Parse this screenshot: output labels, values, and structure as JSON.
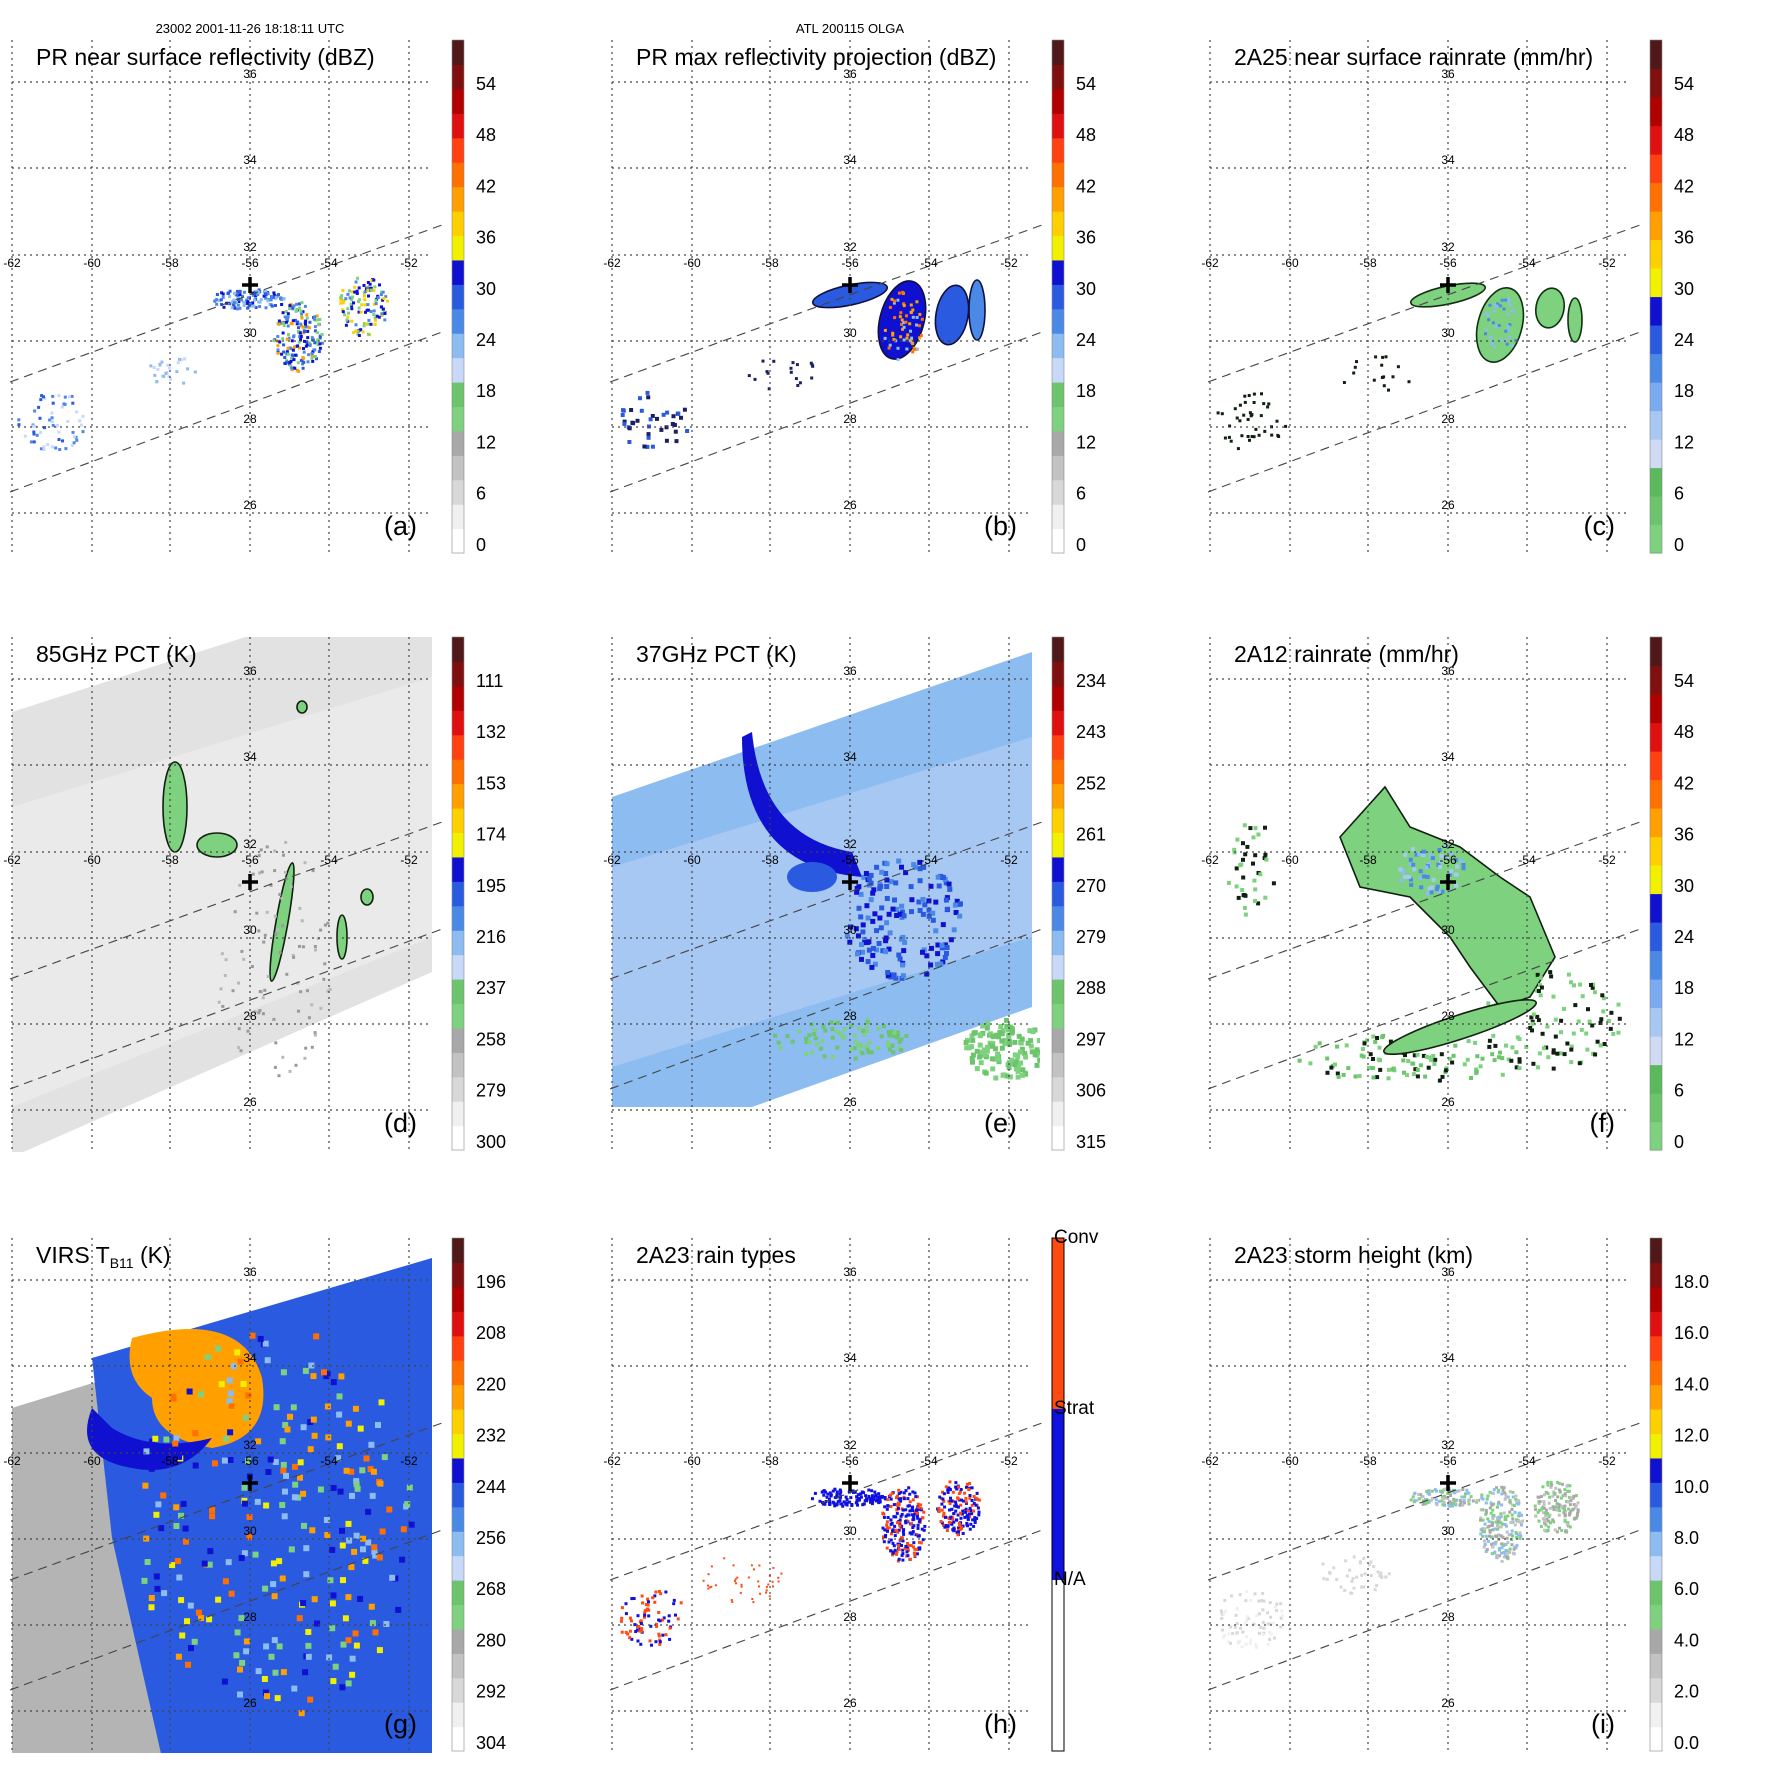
{
  "header": {
    "orbit_time": "23002 2001-11-26 18:18:11 UTC",
    "storm": "ATL 200115 OLGA"
  },
  "axes": {
    "lon_labels": [
      "-62",
      "-60",
      "-58",
      "-56",
      "-54",
      "-52"
    ],
    "lat_labels": [
      "36",
      "34",
      "32",
      "30",
      "28",
      "26"
    ]
  },
  "panels": [
    {
      "id": "a",
      "label": "(a)",
      "title": "PR near surface reflectivity (dBZ)",
      "title_sub": "",
      "title_end": "",
      "swath": "narrow",
      "field": "pr_dbz",
      "colorbar": {
        "ticks": [
          "54",
          "48",
          "42",
          "36",
          "30",
          "24",
          "18",
          "12",
          "6",
          "0"
        ],
        "colors": [
          "#ffffff",
          "#f0f0f0",
          "#d8d8d8",
          "#c2c2c2",
          "#a8a8a8",
          "#7ed17e",
          "#6cc46c",
          "#c8d8f8",
          "#8cbcf0",
          "#4a8ae6",
          "#2a5ae0",
          "#1010d0",
          "#f0f000",
          "#ffd000",
          "#ffa000",
          "#ff7000",
          "#ff4010",
          "#e01010",
          "#b00000",
          "#801010",
          "#501818"
        ]
      }
    },
    {
      "id": "b",
      "label": "(b)",
      "title": "PR max reflectivity projection (dBZ)",
      "title_sub": "",
      "title_end": "",
      "swath": "narrow",
      "field": "pr_max",
      "colorbar": {
        "ticks": [
          "54",
          "48",
          "42",
          "36",
          "30",
          "24",
          "18",
          "12",
          "6",
          "0"
        ],
        "colors": [
          "#ffffff",
          "#f0f0f0",
          "#d8d8d8",
          "#c2c2c2",
          "#a8a8a8",
          "#7ed17e",
          "#6cc46c",
          "#c8d8f8",
          "#8cbcf0",
          "#4a8ae6",
          "#2a5ae0",
          "#1010d0",
          "#f0f000",
          "#ffd000",
          "#ffa000",
          "#ff7000",
          "#ff4010",
          "#e01010",
          "#b00000",
          "#801010",
          "#501818"
        ]
      }
    },
    {
      "id": "c",
      "label": "(c)",
      "title": "2A25 near surface rainrate (mm/hr)",
      "title_sub": "",
      "title_end": "",
      "swath": "narrow",
      "field": "rain25",
      "colorbar": {
        "ticks": [
          "54",
          "48",
          "42",
          "36",
          "30",
          "24",
          "18",
          "12",
          "6",
          "0"
        ],
        "colors": [
          "#7ed17e",
          "#6cc46c",
          "#5cb85c",
          "#d0daf4",
          "#a8c8f4",
          "#7aaaf0",
          "#4a8ae6",
          "#2a5ae0",
          "#1010d0",
          "#f0f000",
          "#ffd000",
          "#ffa000",
          "#ff7000",
          "#ff4010",
          "#e01010",
          "#b00000",
          "#801010",
          "#501818"
        ]
      }
    },
    {
      "id": "d",
      "label": "(d)",
      "title": "85GHz PCT (K)",
      "title_sub": "",
      "title_end": "",
      "swath": "wide",
      "field": "pct85",
      "colorbar": {
        "ticks": [
          "111",
          "132",
          "153",
          "174",
          "195",
          "216",
          "237",
          "258",
          "279",
          "300"
        ],
        "colors": [
          "#ffffff",
          "#f0f0f0",
          "#d8d8d8",
          "#c2c2c2",
          "#a8a8a8",
          "#7ed17e",
          "#6cc46c",
          "#c8d8f8",
          "#8cbcf0",
          "#4a8ae6",
          "#2a5ae0",
          "#1010d0",
          "#f0f000",
          "#ffd000",
          "#ffa000",
          "#ff7000",
          "#ff4010",
          "#e01010",
          "#b00000",
          "#801010",
          "#501818"
        ]
      }
    },
    {
      "id": "e",
      "label": "(e)",
      "title": "37GHz PCT (K)",
      "title_sub": "",
      "title_end": "",
      "swath": "wide",
      "field": "pct37",
      "colorbar": {
        "ticks": [
          "234",
          "243",
          "252",
          "261",
          "270",
          "279",
          "288",
          "297",
          "306",
          "315"
        ],
        "colors": [
          "#ffffff",
          "#f0f0f0",
          "#d8d8d8",
          "#c2c2c2",
          "#a8a8a8",
          "#7ed17e",
          "#6cc46c",
          "#c8d8f8",
          "#8cbcf0",
          "#4a8ae6",
          "#2a5ae0",
          "#1010d0",
          "#f0f000",
          "#ffd000",
          "#ffa000",
          "#ff7000",
          "#ff4010",
          "#e01010",
          "#b00000",
          "#801010",
          "#501818"
        ]
      }
    },
    {
      "id": "f",
      "label": "(f)",
      "title": "2A12 rainrate (mm/hr)",
      "title_sub": "",
      "title_end": "",
      "swath": "wide_f",
      "field": "rain12",
      "colorbar": {
        "ticks": [
          "54",
          "48",
          "42",
          "36",
          "30",
          "24",
          "18",
          "12",
          "6",
          "0"
        ],
        "colors": [
          "#7ed17e",
          "#6cc46c",
          "#5cb85c",
          "#d0daf4",
          "#a8c8f4",
          "#7aaaf0",
          "#4a8ae6",
          "#2a5ae0",
          "#1010d0",
          "#f0f000",
          "#ffd000",
          "#ffa000",
          "#ff7000",
          "#ff4010",
          "#e01010",
          "#b00000",
          "#801010",
          "#501818"
        ]
      }
    },
    {
      "id": "g",
      "label": "(g)",
      "title": "VIRS T",
      "title_sub": "B11",
      "title_end": " (K)",
      "swath": "wide_g",
      "field": "virs",
      "colorbar": {
        "ticks": [
          "196",
          "208",
          "220",
          "232",
          "244",
          "256",
          "268",
          "280",
          "292",
          "304"
        ],
        "colors": [
          "#ffffff",
          "#f0f0f0",
          "#d8d8d8",
          "#c2c2c2",
          "#a8a8a8",
          "#7ed17e",
          "#6cc46c",
          "#c8d8f8",
          "#8cbcf0",
          "#4a8ae6",
          "#2a5ae0",
          "#1010d0",
          "#f0f000",
          "#ffd000",
          "#ffa000",
          "#ff7000",
          "#ff4010",
          "#e01010",
          "#b00000",
          "#801010",
          "#501818"
        ]
      }
    },
    {
      "id": "h",
      "label": "(h)",
      "title": "2A23 rain types",
      "title_sub": "",
      "title_end": "",
      "swath": "narrow",
      "field": "raintype",
      "colorbar": {
        "ticks": [],
        "colors": [],
        "categories": [
          {
            "label": "Conv",
            "color": "#ff4a10"
          },
          {
            "label": "Strat",
            "color": "#1010e0"
          },
          {
            "label": "N/A",
            "color": "#ffffff"
          }
        ]
      }
    },
    {
      "id": "i",
      "label": "(i)",
      "title": "2A23 storm height (km)",
      "title_sub": "",
      "title_end": "",
      "swath": "narrow",
      "field": "height",
      "colorbar": {
        "ticks": [
          "18.0",
          "16.0",
          "14.0",
          "12.0",
          "10.0",
          "8.0",
          "6.0",
          "4.0",
          "2.0",
          "0.0"
        ],
        "colors": [
          "#ffffff",
          "#f0f0f0",
          "#d8d8d8",
          "#c2c2c2",
          "#a8a8a8",
          "#7ed17e",
          "#6cc46c",
          "#c8d8f8",
          "#8cbcf0",
          "#4a8ae6",
          "#2a5ae0",
          "#1010d0",
          "#f0f000",
          "#ffd000",
          "#ffa000",
          "#ff7000",
          "#ff4010",
          "#e01010",
          "#b00000",
          "#801010",
          "#501818"
        ]
      }
    }
  ]
}
